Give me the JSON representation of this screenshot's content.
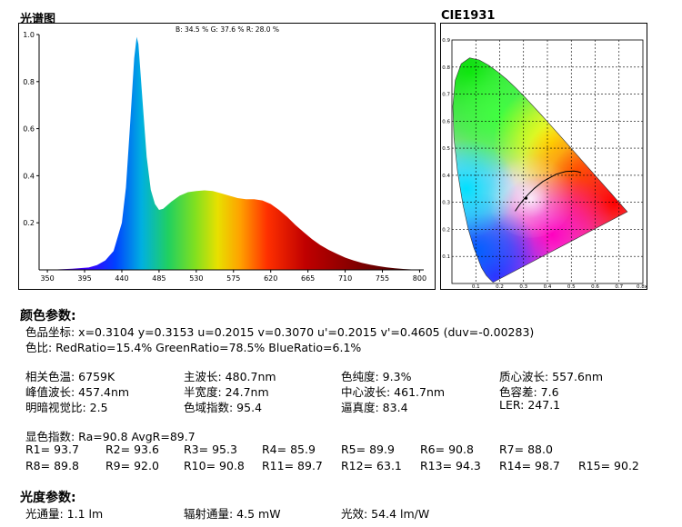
{
  "spectrum": {
    "title": "光谱图",
    "ratio_text": "B: 34.5 %  G: 37.6 %  R: 28.0 %"
  },
  "cie": {
    "title": "CIE1931"
  },
  "color_params": {
    "title": "颜色参数:",
    "line1": "色品坐标: x=0.3104   y=0.3153   u=0.2015   v=0.3070   u'=0.2015   v'=0.4605  (duv=-0.00283)",
    "line2": "色比:  RedRatio=15.4%   GreenRatio=78.5%   BlueRatio=6.1%",
    "grid": [
      [
        "相关色温: 6759K",
        "主波长: 480.7nm",
        "色纯度: 9.3%",
        "质心波长: 557.6nm"
      ],
      [
        "峰值波长: 457.4nm",
        "半宽度: 24.7nm",
        "中心波长: 461.7nm",
        "色容差: 7.6"
      ],
      [
        "明暗视觉比: 2.5",
        "色域指数: 95.4",
        "逼真度: 83.4",
        "LER: 247.1"
      ]
    ],
    "cri_line": "显色指数: Ra=90.8     AvgR=89.7",
    "r_row1": [
      "R1= 93.7",
      "R2= 93.6",
      "R3= 95.3",
      "R4= 85.9",
      "R5= 89.9",
      "R6= 90.8",
      "R7= 88.0"
    ],
    "r_row2": [
      "R8= 89.8",
      "R9= 92.0",
      "R10= 90.8",
      "R11= 89.7",
      "R12= 63.1",
      "R13= 94.3",
      "R14= 98.7",
      "R15= 90.2"
    ]
  },
  "photo_params": {
    "title": "光度参数:",
    "items": [
      "光通量: 1.1 lm",
      "辐射通量: 4.5 mW",
      "光效: 54.4 lm/W"
    ]
  },
  "chart_data": [
    {
      "type": "area",
      "title": "光谱图",
      "x": [
        350,
        380,
        400,
        410,
        420,
        430,
        440,
        445,
        450,
        455,
        458,
        460,
        465,
        470,
        475,
        480,
        485,
        490,
        500,
        510,
        520,
        530,
        540,
        550,
        560,
        570,
        580,
        590,
        600,
        610,
        620,
        630,
        640,
        650,
        660,
        670,
        680,
        690,
        700,
        710,
        720,
        730,
        740,
        750,
        760,
        770,
        780,
        790,
        800
      ],
      "y": [
        0.0,
        0.005,
        0.01,
        0.02,
        0.04,
        0.08,
        0.2,
        0.35,
        0.62,
        0.9,
        0.99,
        0.96,
        0.72,
        0.48,
        0.34,
        0.28,
        0.255,
        0.26,
        0.29,
        0.315,
        0.33,
        0.335,
        0.338,
        0.335,
        0.325,
        0.315,
        0.305,
        0.3,
        0.3,
        0.295,
        0.28,
        0.255,
        0.225,
        0.19,
        0.16,
        0.13,
        0.105,
        0.085,
        0.068,
        0.052,
        0.04,
        0.03,
        0.022,
        0.016,
        0.011,
        0.007,
        0.004,
        0.002,
        0.0
      ],
      "xlim": [
        340,
        805
      ],
      "ylim": [
        0,
        1.0
      ],
      "xticks": [
        350,
        395,
        440,
        485,
        530,
        575,
        620,
        665,
        710,
        755,
        800
      ],
      "yticks": [
        0.2,
        0.4,
        0.6,
        0.8,
        1.0
      ]
    },
    {
      "type": "scatter",
      "title": "CIE1931",
      "xlim": [
        0,
        0.8
      ],
      "ylim": [
        0,
        0.9
      ],
      "xticks": [
        0.1,
        0.2,
        0.3,
        0.4,
        0.5,
        0.6,
        0.7
      ],
      "xtick_last_label": "0.8x",
      "yticks": [
        0.1,
        0.2,
        0.3,
        0.4,
        0.5,
        0.6,
        0.7,
        0.8,
        0.9
      ],
      "locus_x": [
        0.1741,
        0.1738,
        0.1733,
        0.1726,
        0.1714,
        0.1689,
        0.1644,
        0.1566,
        0.144,
        0.1241,
        0.0913,
        0.0687,
        0.0454,
        0.0235,
        0.0082,
        0.0039,
        0.0139,
        0.0389,
        0.0743,
        0.1142,
        0.1547,
        0.1929,
        0.2296,
        0.2658,
        0.3016,
        0.3373,
        0.3731,
        0.4087,
        0.4441,
        0.4788,
        0.5125,
        0.5448,
        0.5752,
        0.6029,
        0.627,
        0.6482,
        0.6658,
        0.6801,
        0.6915,
        0.7006,
        0.7079,
        0.714,
        0.7347
      ],
      "locus_y": [
        0.005,
        0.0049,
        0.0048,
        0.0048,
        0.0051,
        0.0069,
        0.0109,
        0.0177,
        0.0297,
        0.0578,
        0.1327,
        0.2007,
        0.295,
        0.4127,
        0.5384,
        0.6548,
        0.7502,
        0.812,
        0.8338,
        0.8262,
        0.8059,
        0.7816,
        0.7543,
        0.7243,
        0.6923,
        0.6589,
        0.6245,
        0.5896,
        0.5547,
        0.5202,
        0.4866,
        0.4544,
        0.4242,
        0.3965,
        0.3725,
        0.3514,
        0.334,
        0.3197,
        0.3083,
        0.2993,
        0.292,
        0.2859,
        0.2653
      ],
      "planck_x": [
        0.2647,
        0.2806,
        0.2998,
        0.3221,
        0.3451,
        0.3805,
        0.4369,
        0.4765,
        0.5109,
        0.5267,
        0.5408
      ],
      "planck_y": [
        0.2674,
        0.2883,
        0.3104,
        0.3318,
        0.3516,
        0.3768,
        0.4041,
        0.4137,
        0.4154,
        0.4133,
        0.4092
      ],
      "point": [
        0.3104,
        0.3153
      ]
    }
  ]
}
